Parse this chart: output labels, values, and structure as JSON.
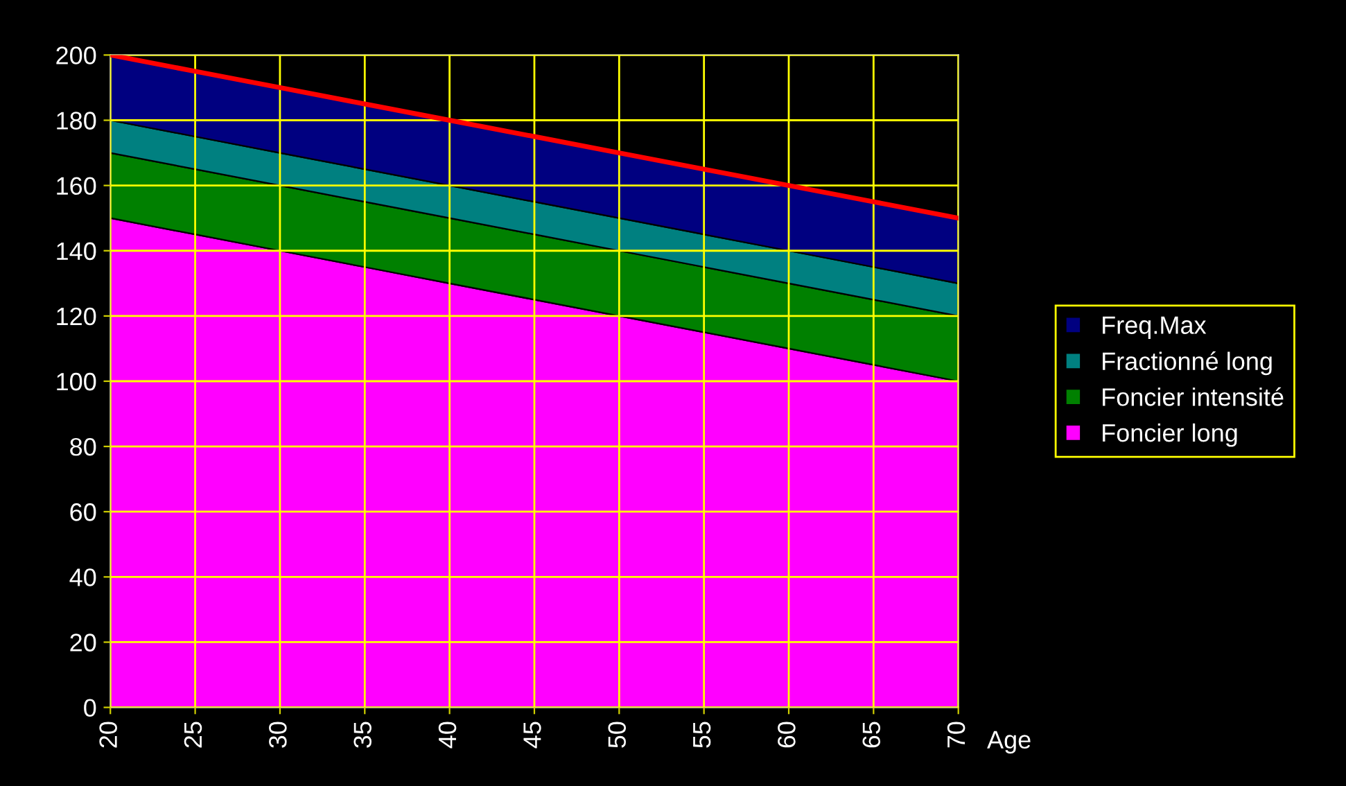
{
  "chart_data": {
    "type": "area",
    "stacked": true,
    "xlabel": "Age",
    "x": [
      20,
      25,
      30,
      35,
      40,
      45,
      50,
      55,
      60,
      65,
      70
    ],
    "series": [
      {
        "name": "Foncier long",
        "color": "#ff00ff",
        "values": [
          150,
          145,
          140,
          135,
          130,
          125,
          120,
          115,
          110,
          105,
          100
        ]
      },
      {
        "name": "Foncier intensité",
        "color": "#008000",
        "values": [
          20,
          20,
          20,
          20,
          20,
          20,
          20,
          20,
          20,
          20,
          20
        ]
      },
      {
        "name": "Fractionné long",
        "color": "#008080",
        "values": [
          10,
          10,
          10,
          10,
          10,
          10,
          10,
          10,
          10,
          10,
          10
        ]
      },
      {
        "name": "Freq.Max",
        "color": "#000080",
        "values": [
          20,
          20,
          20,
          20,
          20,
          20,
          20,
          20,
          20,
          20,
          20
        ]
      },
      {
        "type": "line",
        "color": "#ff0000",
        "values": [
          200,
          195,
          190,
          185,
          180,
          175,
          170,
          165,
          160,
          155,
          150
        ]
      }
    ],
    "xlim": [
      20,
      70
    ],
    "ylim": [
      0,
      200
    ],
    "xticks": [
      20,
      25,
      30,
      35,
      40,
      45,
      50,
      55,
      60,
      65,
      70
    ],
    "yticks": [
      0,
      20,
      40,
      60,
      80,
      100,
      120,
      140,
      160,
      180,
      200
    ],
    "grid": true,
    "legend": "right"
  }
}
